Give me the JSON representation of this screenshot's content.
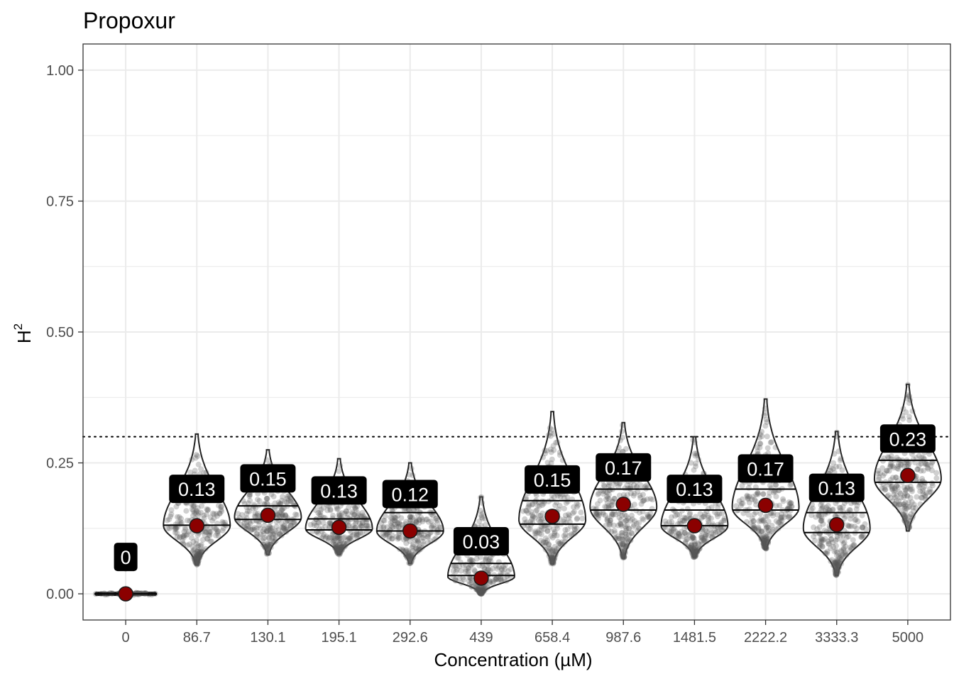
{
  "chart_data": {
    "type": "violin",
    "title": "Propoxur",
    "xlabel": "Concentration (µM)",
    "ylabel": "H",
    "ylabel_superscript": "2",
    "categories": [
      "0",
      "86.7",
      "130.1",
      "195.1",
      "292.6",
      "439",
      "658.4",
      "987.6",
      "1481.5",
      "2222.2",
      "3333.3",
      "5000"
    ],
    "y_ticks": [
      0.0,
      0.25,
      0.5,
      0.75,
      1.0
    ],
    "y_tick_labels": [
      "0.00",
      "0.25",
      "0.50",
      "0.75",
      "1.00"
    ],
    "ylim": [
      -0.05,
      1.05
    ],
    "reference_line": 0.3,
    "mean_labels": [
      "0",
      "0.13",
      "0.15",
      "0.13",
      "0.12",
      "0.03",
      "0.15",
      "0.17",
      "0.13",
      "0.17",
      "0.13",
      "0.23"
    ],
    "means": [
      0.0,
      0.13,
      0.15,
      0.127,
      0.12,
      0.03,
      0.148,
      0.171,
      0.13,
      0.169,
      0.132,
      0.226
    ],
    "medians": [
      0.0,
      0.131,
      0.142,
      0.122,
      0.12,
      0.035,
      0.133,
      0.16,
      0.13,
      0.16,
      0.117,
      0.213
    ],
    "q3": [
      0.0,
      0.217,
      0.168,
      0.143,
      0.155,
      0.058,
      0.178,
      0.2,
      0.16,
      0.2,
      0.155,
      0.255
    ],
    "min": [
      0.0,
      0.055,
      0.075,
      0.075,
      0.058,
      0.0,
      0.057,
      0.068,
      0.07,
      0.085,
      0.035,
      0.12
    ],
    "max": [
      0.08,
      0.305,
      0.275,
      0.258,
      0.25,
      0.185,
      0.348,
      0.327,
      0.3,
      0.372,
      0.31,
      0.4
    ],
    "grid": true,
    "colors": {
      "mean_point": "#8b0000",
      "jitter_point": "#555555",
      "label_bg": "#000000",
      "label_text": "#ffffff",
      "grid": "#ebebeb",
      "outline": "#222222"
    }
  }
}
